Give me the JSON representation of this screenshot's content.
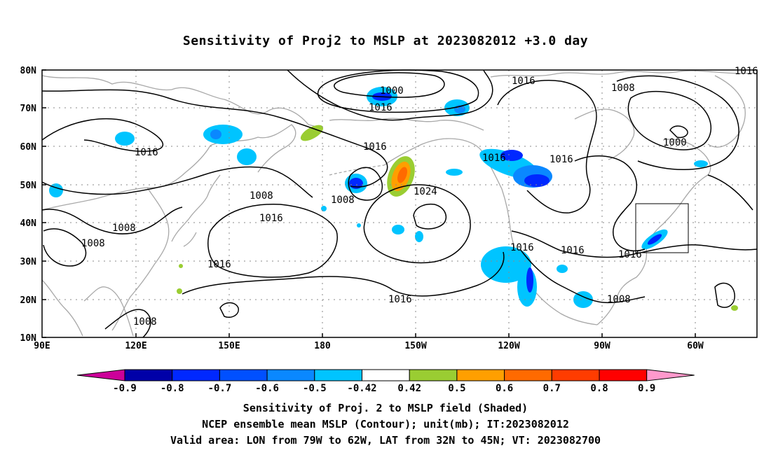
{
  "title": "Sensitivity of Proj2 to MSLP at 2023082012 +3.0 day",
  "lat_labels": [
    "80N",
    "70N",
    "60N",
    "50N",
    "40N",
    "30N",
    "20N",
    "10N"
  ],
  "lon_labels": [
    "90E",
    "120E",
    "150E",
    "180",
    "150W",
    "120W",
    "90W",
    "60W"
  ],
  "contour_labels": [
    "1000",
    "1016",
    "1016",
    "1008",
    "1016",
    "1000",
    "1016",
    "1016",
    "1016",
    "1016",
    "1008",
    "1008",
    "1024",
    "1016",
    "1008",
    "1008",
    "1016",
    "1016",
    "1016",
    "1016",
    "1016",
    "1008",
    "1008"
  ],
  "colorbar": {
    "labels": [
      "-0.9",
      "-0.8",
      "-0.7",
      "-0.6",
      "-0.5",
      "-0.42",
      "0.42",
      "0.5",
      "0.6",
      "0.7",
      "0.8",
      "0.9"
    ],
    "colors": [
      "#0000a8",
      "#0028ff",
      "#0050ff",
      "#0a88ff",
      "#00c4ff",
      "#ffffff",
      "#9acd32",
      "#ff9f00",
      "#ff6a00",
      "#ff3c00",
      "#ff0000"
    ],
    "low_end_color": "#cc0099",
    "high_end_color": "#ff99cc"
  },
  "valid_area_box": {
    "lon_west": -79,
    "lon_east": -62,
    "lat_south": 32,
    "lat_north": 45
  },
  "captions": [
    "Sensitivity of Proj. 2 to MSLP field (Shaded)",
    "NCEP ensemble mean MSLP (Contour); unit(mb); IT:2023082012",
    "Valid area: LON from 79W to 62W, LAT from 32N to 45N; VT: 2023082700"
  ]
}
